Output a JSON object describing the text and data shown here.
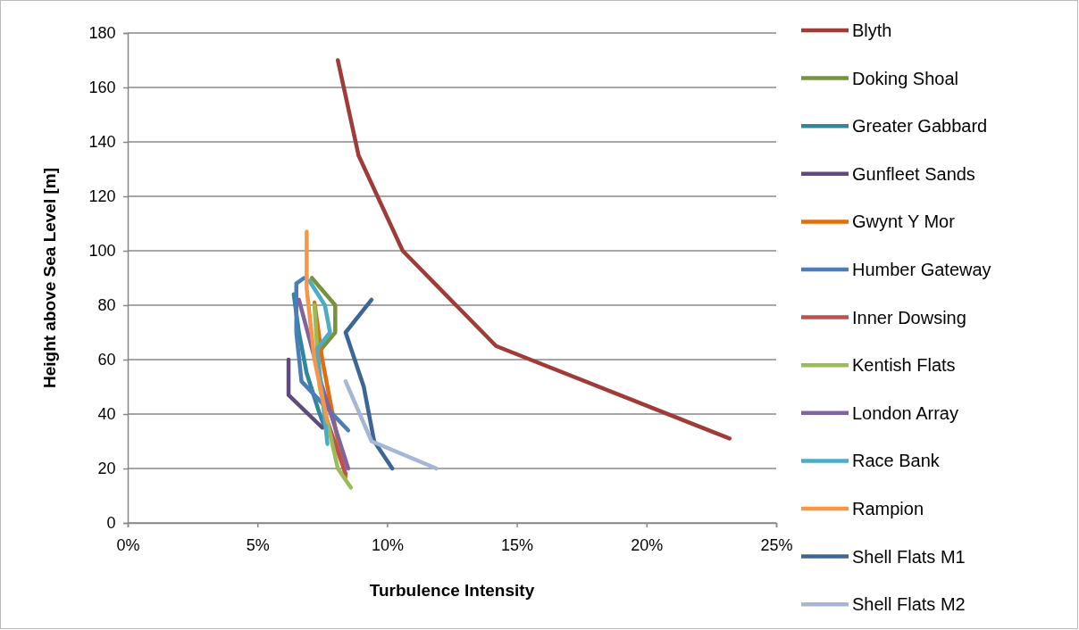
{
  "chart_data": {
    "type": "line",
    "xlabel": "Turbulence Intensity",
    "ylabel": "Height above Sea Level [m]",
    "xlim": [
      0,
      25
    ],
    "xticks": [
      {
        "value": 0,
        "label": "0%"
      },
      {
        "value": 5,
        "label": "5%"
      },
      {
        "value": 10,
        "label": "10%"
      },
      {
        "value": 15,
        "label": "15%"
      },
      {
        "value": 20,
        "label": "20%"
      },
      {
        "value": 25,
        "label": "25%"
      }
    ],
    "ylim": [
      0,
      180
    ],
    "yticks": [
      0,
      20,
      40,
      60,
      80,
      100,
      120,
      140,
      160,
      180
    ],
    "grid": "y",
    "legend": "right",
    "marker": "none",
    "line_style": "solid",
    "series": [
      {
        "name": "Blyth",
        "color": "#a03c38",
        "x": [
          8.1,
          8.9,
          10.6,
          14.2,
          23.2
        ],
        "values": [
          170,
          135,
          100,
          65,
          31
        ]
      },
      {
        "name": "Doking Shoal",
        "color": "#77933c",
        "x": [
          7.1,
          8.0,
          8.0,
          7.3
        ],
        "values": [
          90,
          80,
          70,
          62
        ]
      },
      {
        "name": "Greater Gabbard",
        "color": "#31859c",
        "x": [
          6.4,
          6.6,
          6.9,
          7.4,
          7.6
        ],
        "values": [
          84,
          70,
          55,
          40,
          35
        ]
      },
      {
        "name": "Gunfleet Sands",
        "color": "#604a7b",
        "x": [
          6.2,
          6.2,
          7.5
        ],
        "values": [
          60,
          47,
          35
        ]
      },
      {
        "name": "Gwynt Y Mor",
        "color": "#e46c0a",
        "x": [
          7.2,
          7.5,
          8.0,
          8.4
        ],
        "values": [
          81,
          60,
          35,
          17
        ]
      },
      {
        "name": "Humber Gateway",
        "color": "#4a7ebb",
        "x": [
          6.8,
          6.5,
          6.5,
          6.7,
          7.1,
          8.5
        ],
        "values": [
          90,
          88,
          70,
          52,
          48,
          34
        ]
      },
      {
        "name": "Inner Dowsing",
        "color": "#c0504d",
        "x": [
          7.6,
          8.4
        ],
        "values": [
          40,
          18
        ]
      },
      {
        "name": "Kentish Flats",
        "color": "#9bbb59",
        "x": [
          7.2,
          7.4,
          8.1,
          8.6
        ],
        "values": [
          80,
          50,
          20,
          13
        ]
      },
      {
        "name": "London Array",
        "color": "#8064a2",
        "x": [
          6.6,
          7.5,
          8.5
        ],
        "values": [
          82,
          50,
          20
        ]
      },
      {
        "name": "Race Bank",
        "color": "#4bacc6",
        "x": [
          7.0,
          7.6,
          7.8,
          7.3,
          7.7
        ],
        "values": [
          89,
          80,
          70,
          64,
          29
        ]
      },
      {
        "name": "Rampion",
        "color": "#f79646",
        "x": [
          6.9,
          6.9,
          7.2,
          7.7
        ],
        "values": [
          107,
          86,
          60,
          37
        ]
      },
      {
        "name": "Shell Flats M1",
        "color": "#3c6696",
        "x": [
          9.4,
          8.4,
          9.1,
          9.5,
          10.2
        ],
        "values": [
          82,
          70,
          50,
          30,
          20
        ]
      },
      {
        "name": "Shell Flats M2",
        "color": "#a5b7d4",
        "x": [
          8.4,
          9.4,
          11.9
        ],
        "values": [
          52,
          30,
          20
        ]
      }
    ]
  }
}
